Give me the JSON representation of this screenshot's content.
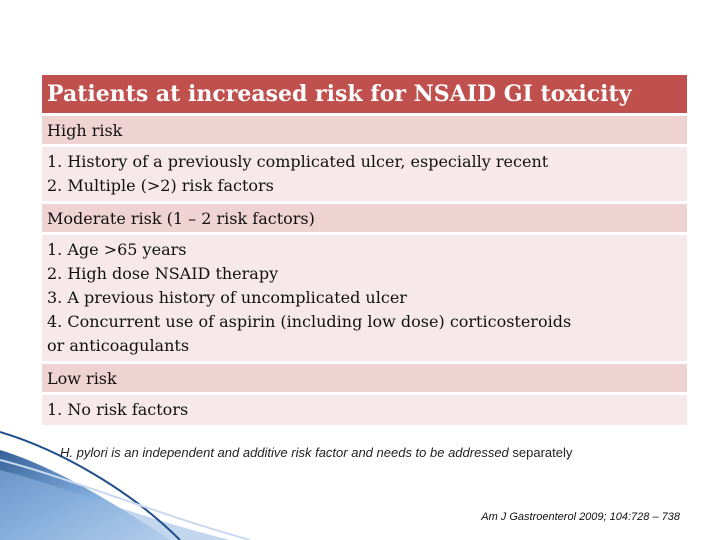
{
  "table": {
    "header": "Patients at increased risk for NSAID GI toxicity",
    "sections": [
      {
        "label": "High risk",
        "items": [
          "1. History of a previously complicated ulcer, especially recent",
          "2. Multiple (>2) risk factors"
        ]
      },
      {
        "label": "Moderate risk (1 – 2 risk factors)",
        "items": [
          "1. Age >65 years",
          "2. High dose NSAID therapy",
          "3. A previous history of uncomplicated ulcer",
          "4. Concurrent use of aspirin (including low dose) corticosteroids",
          "or anticoagulants"
        ]
      },
      {
        "label": "Low risk",
        "items": [
          "1. No risk factors"
        ]
      }
    ]
  },
  "note": {
    "italic_part": "H. pylori is an independent and additive risk factor and needs to be addressed",
    "rest": " separately"
  },
  "citation": "Am J Gastroenterol 2009; 104:728 – 738",
  "colors": {
    "header_bg": "#c0504d",
    "label_bg": "#efd3d2",
    "detail_bg": "#f7e9e9",
    "decor_blue": "#4f81bd"
  }
}
